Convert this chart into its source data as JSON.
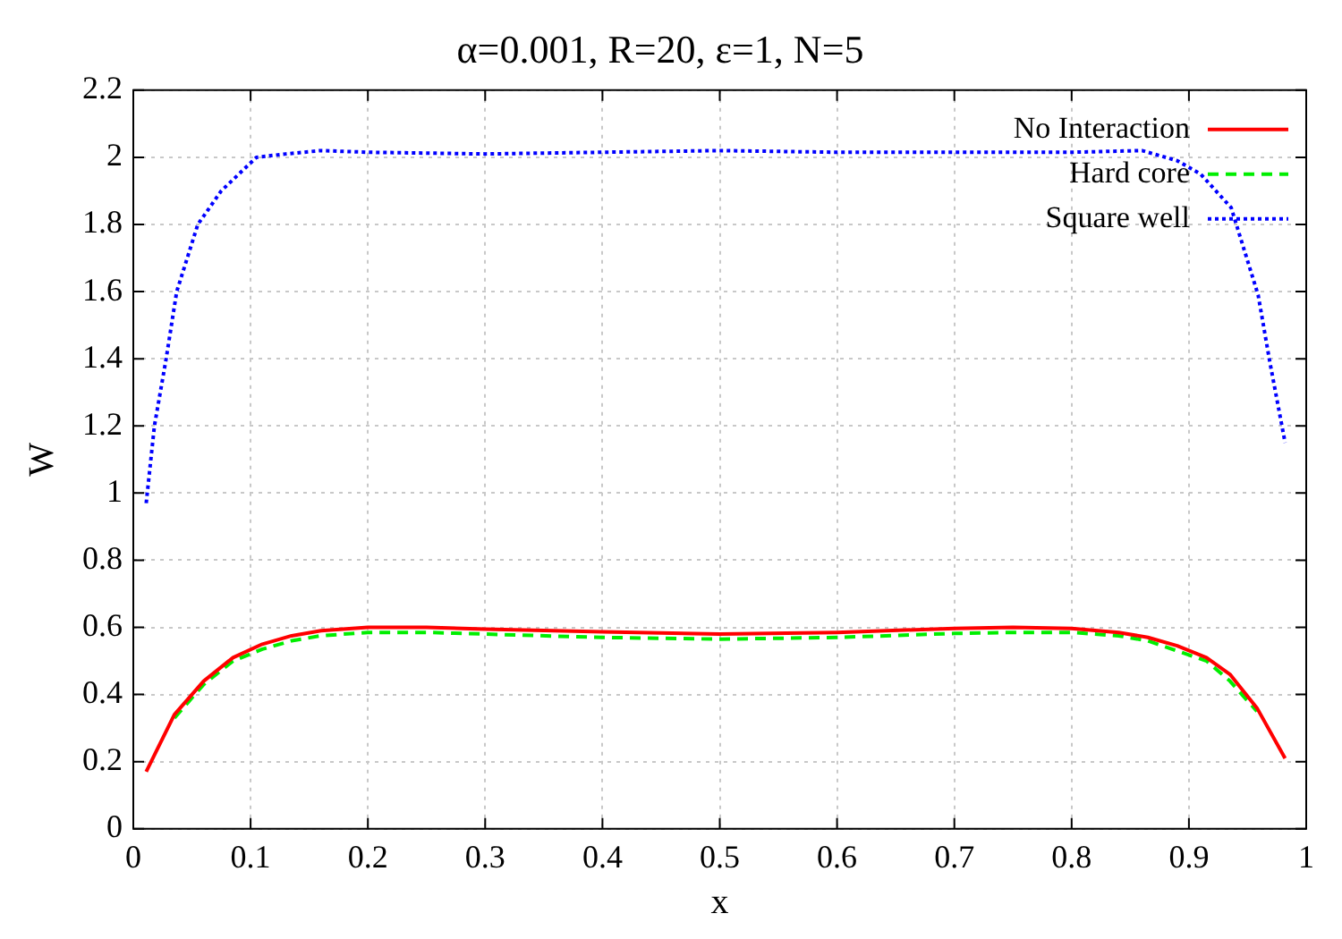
{
  "chart_data": {
    "type": "line",
    "title": "α=0.001, R=20, ε=1, N=5",
    "xlabel": "x",
    "ylabel": "W",
    "xlim": [
      0,
      1
    ],
    "xticks": [
      {
        "value": 0,
        "label": "0"
      },
      0.1,
      0.2,
      0.3,
      0.4,
      0.5,
      0.6,
      0.7,
      0.8,
      0.9,
      {
        "value": 1,
        "label": "1"
      }
    ],
    "ylim": [
      0,
      2.2
    ],
    "yticks": [
      {
        "value": 0,
        "label": "0"
      },
      0.2,
      0.4,
      0.6,
      0.8,
      {
        "value": 1,
        "label": "1"
      },
      1.2,
      1.4,
      1.6,
      1.8,
      {
        "value": 2,
        "label": "2"
      },
      2.2
    ],
    "grid": true,
    "legend": "top right",
    "marker": "none",
    "series": [
      {
        "name": "No Interaction",
        "color": "#ff0000",
        "line_style": "solid",
        "x": [
          0.011,
          0.035,
          0.06,
          0.085,
          0.11,
          0.135,
          0.16,
          0.2,
          0.25,
          0.3,
          0.4,
          0.5,
          0.6,
          0.7,
          0.75,
          0.8,
          0.84,
          0.865,
          0.89,
          0.915,
          0.935,
          0.958,
          0.982
        ],
        "values": [
          0.17,
          0.34,
          0.44,
          0.51,
          0.55,
          0.575,
          0.59,
          0.6,
          0.6,
          0.595,
          0.587,
          0.58,
          0.585,
          0.597,
          0.6,
          0.597,
          0.585,
          0.57,
          0.545,
          0.51,
          0.46,
          0.36,
          0.21
        ]
      },
      {
        "name": "Hard core",
        "color": "#00ee00",
        "line_style": "dashed",
        "x": [
          0.035,
          0.06,
          0.085,
          0.11,
          0.135,
          0.16,
          0.2,
          0.25,
          0.3,
          0.4,
          0.5,
          0.6,
          0.7,
          0.75,
          0.8,
          0.84,
          0.865,
          0.89,
          0.915,
          0.935,
          0.958
        ],
        "values": [
          0.33,
          0.43,
          0.5,
          0.535,
          0.56,
          0.575,
          0.585,
          0.585,
          0.58,
          0.57,
          0.565,
          0.57,
          0.582,
          0.585,
          0.585,
          0.575,
          0.56,
          0.53,
          0.5,
          0.44,
          0.35
        ]
      },
      {
        "name": "Square well",
        "color": "#0000ff",
        "line_style": "dotted",
        "x": [
          0.011,
          0.018,
          0.028,
          0.037,
          0.055,
          0.075,
          0.105,
          0.13,
          0.16,
          0.2,
          0.3,
          0.4,
          0.5,
          0.6,
          0.7,
          0.8,
          0.86,
          0.89,
          0.91,
          0.936,
          0.959,
          0.969,
          0.982
        ],
        "values": [
          0.97,
          1.2,
          1.4,
          1.6,
          1.8,
          1.9,
          2.0,
          2.01,
          2.02,
          2.015,
          2.01,
          2.015,
          2.02,
          2.015,
          2.015,
          2.015,
          2.02,
          1.99,
          1.95,
          1.85,
          1.59,
          1.39,
          1.15
        ]
      }
    ]
  }
}
